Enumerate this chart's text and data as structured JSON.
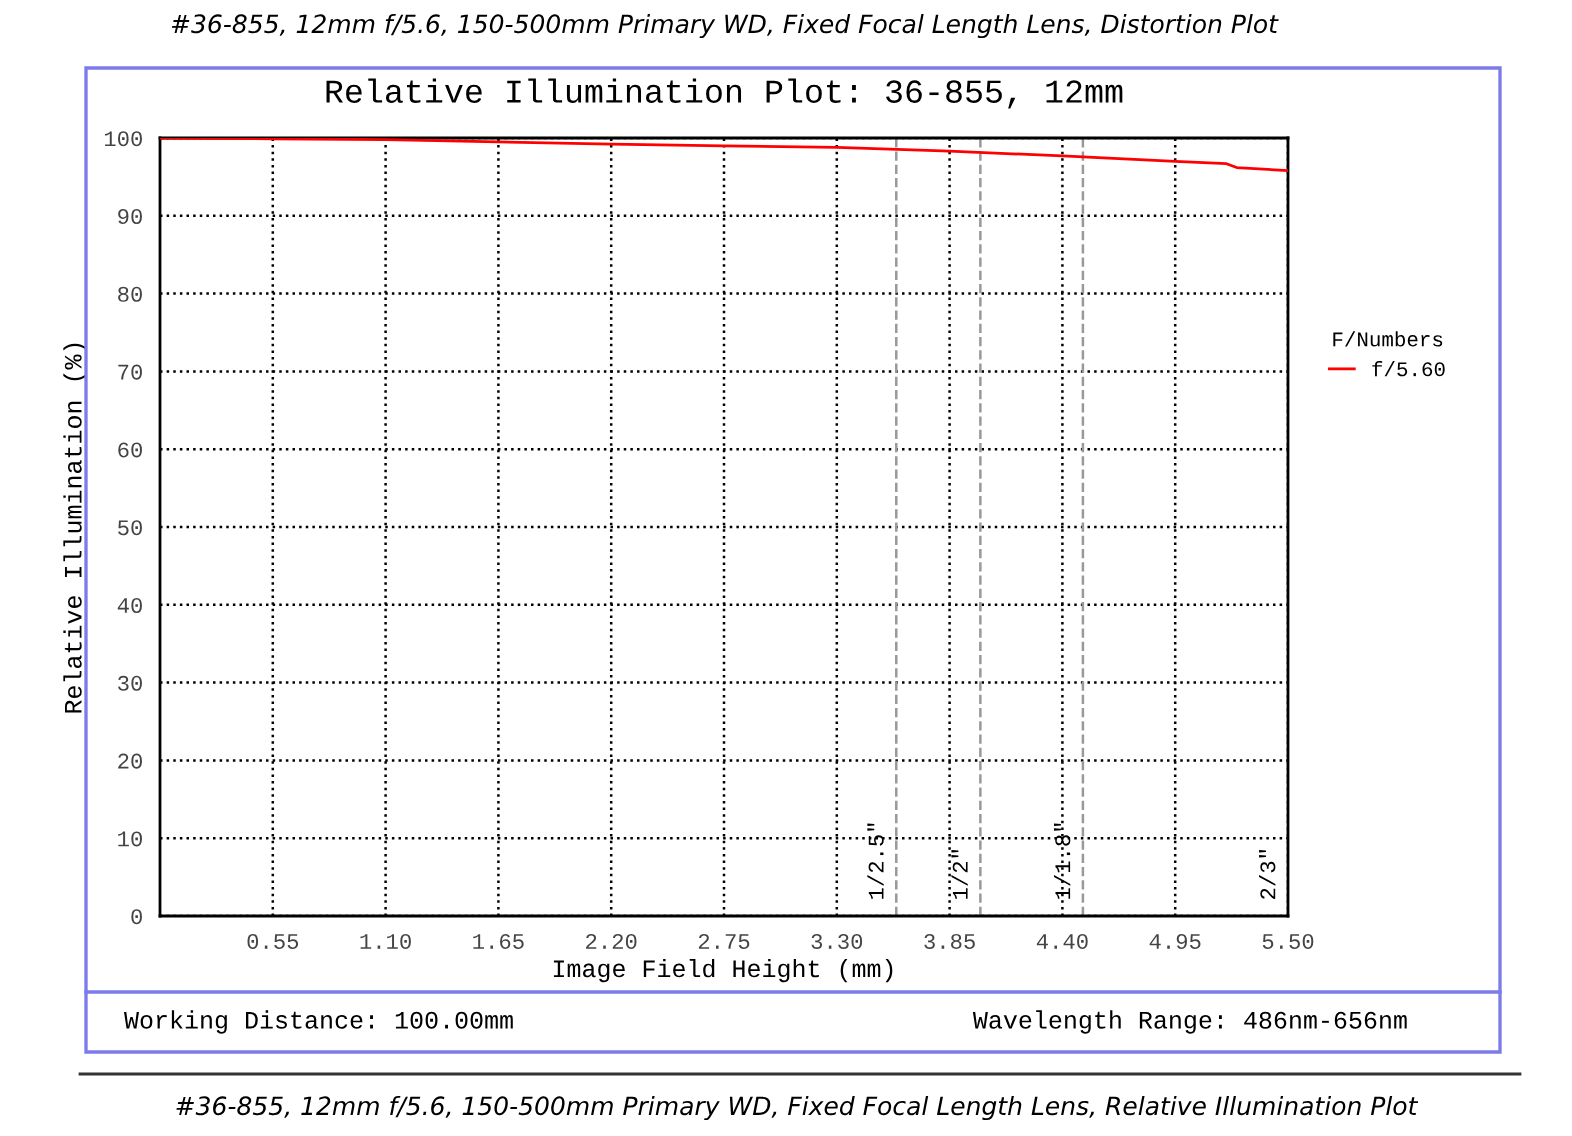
{
  "chart_data": {
    "type": "line",
    "title": "Relative Illumination Plot: 36-855, 12mm",
    "xlabel": "Image Field Height (mm)",
    "ylabel": "Relative Illumination (%)",
    "legend_title": "F/Numbers",
    "x": [
      0,
      0.55,
      1.1,
      1.65,
      2.2,
      2.75,
      3.3,
      3.85,
      4.4,
      4.95,
      5.2,
      5.25,
      5.5
    ],
    "series": [
      {
        "name": "f/5.60",
        "color": "#ff0000",
        "values": [
          100,
          99.9,
          99.8,
          99.5,
          99.2,
          99.0,
          98.8,
          98.3,
          97.7,
          97.0,
          96.7,
          96.2,
          95.8
        ]
      }
    ],
    "xlim": [
      0,
      5.5
    ],
    "ylim": [
      0,
      100
    ],
    "xticks": [
      0.55,
      {
        "value": 1.1,
        "label": "1.10"
      },
      1.65,
      {
        "value": 2.2,
        "label": "2.20"
      },
      2.75,
      {
        "value": 3.3,
        "label": "3.30"
      },
      3.85,
      {
        "value": 4.4,
        "label": "4.40"
      },
      4.95,
      {
        "value": 5.5,
        "label": "5.50"
      }
    ],
    "yticks": [
      0,
      10,
      20,
      30,
      40,
      50,
      60,
      70,
      80,
      90,
      100
    ],
    "ref_lines": [
      {
        "axis": "x",
        "value": 3.59,
        "color": "#999999",
        "line_style": "dashed"
      },
      {
        "axis": "x",
        "value": 4.0,
        "color": "#999999",
        "line_style": "dashed"
      },
      {
        "axis": "x",
        "value": 4.5,
        "color": "#999999",
        "line_style": "dashed"
      },
      {
        "axis": "x",
        "value": 5.5,
        "color": "#999999",
        "line_style": "dashed"
      }
    ],
    "grid": true,
    "legend": "right",
    "marker": "none",
    "line_style": "solid",
    "annotations": [
      "#36-855, 12mm f/5.6, 150-500mm Primary WD, Fixed Focal Length Lens, Distortion Plot",
      "Working Distance: 100.00mm",
      "Wavelength Range: 486nm-656nm",
      "#36-855, 12mm f/5.6, 150-500mm Primary WD, Fixed Focal Length Lens, Relative Illumination Plot",
      {
        "text": "1/2.5\"",
        "x": 3.59,
        "y": 2
      },
      {
        "text": "1/2\"",
        "x": 4.0,
        "y": 2
      },
      {
        "text": "1/1.8\"",
        "x": 4.5,
        "y": 2
      },
      {
        "text": "2/3\"",
        "x": 5.5,
        "y": 2
      }
    ]
  }
}
